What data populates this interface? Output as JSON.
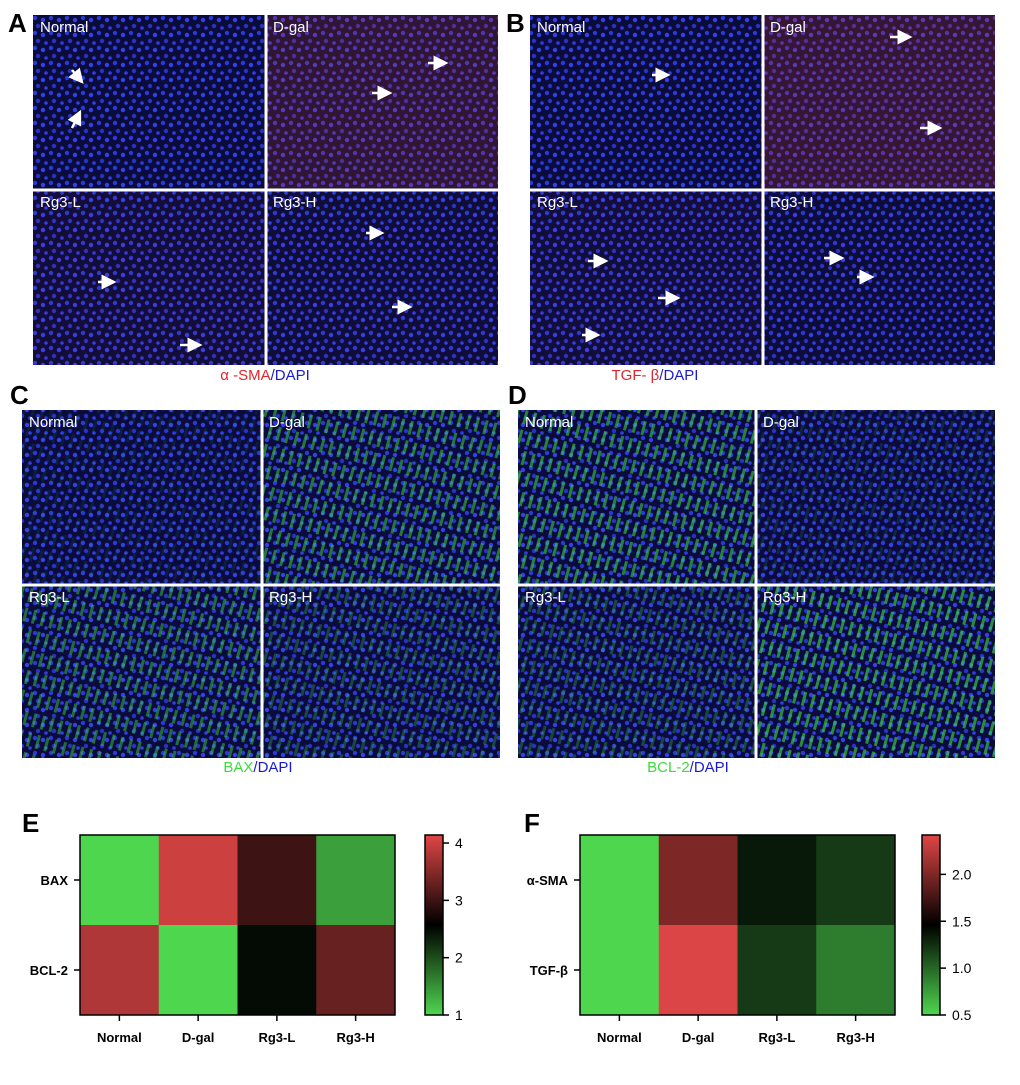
{
  "panels": [
    {
      "letter": "A",
      "labels": [
        "Normal",
        "D-gal",
        "Rg3-L",
        "Rg3-H"
      ],
      "caption": {
        "marker": "α -SMA",
        "slash": "/",
        "dapi": "DAPI"
      },
      "marker_color": "#e3242b",
      "stain": "red"
    },
    {
      "letter": "B",
      "labels": [
        "Normal",
        "D-gal",
        "Rg3-L",
        "Rg3-H"
      ],
      "caption": {
        "marker": "TGF- β",
        "slash": "/",
        "dapi": "DAPI"
      },
      "marker_color": "#e3242b",
      "stain": "red"
    },
    {
      "letter": "C",
      "labels": [
        "Normal",
        "D-gal",
        "Rg3-L",
        "Rg3-H"
      ],
      "caption": {
        "marker": "BAX",
        "slash": "/",
        "dapi": "DAPI"
      },
      "marker_color": "#3ddc3d",
      "stain": "green"
    },
    {
      "letter": "D",
      "labels": [
        "Normal",
        "D-gal",
        "Rg3-L",
        "Rg3-H"
      ],
      "caption": {
        "marker": "BCL-2",
        "slash": "/",
        "dapi": "DAPI"
      },
      "marker_color": "#3ddc3d",
      "stain": "green"
    }
  ],
  "chart_data": [
    {
      "type": "heatmap",
      "letter": "E",
      "categories": [
        "Normal",
        "D-gal",
        "Rg3-L",
        "Rg3-H"
      ],
      "rows": [
        "BAX",
        "BCL-2"
      ],
      "values": [
        [
          1.0,
          4.0,
          3.0,
          1.4
        ],
        [
          3.8,
          1.0,
          2.5,
          3.3
        ]
      ],
      "colormap": [
        "#4fd64f",
        "#000000",
        "#e04646"
      ],
      "clim": [
        1,
        4.14
      ],
      "colorbar_ticks": [
        1,
        2,
        3,
        4
      ]
    },
    {
      "type": "heatmap",
      "letter": "F",
      "categories": [
        "Normal",
        "D-gal",
        "Rg3-L",
        "Rg3-H"
      ],
      "rows": [
        "α-SMA",
        "TGF-β"
      ],
      "values": [
        [
          0.5,
          2.0,
          1.35,
          1.2
        ],
        [
          0.5,
          2.4,
          1.2,
          0.9
        ]
      ],
      "colormap": [
        "#4fd64f",
        "#000000",
        "#e04646"
      ],
      "clim": [
        0.5,
        2.42
      ],
      "colorbar_ticks": [
        0.5,
        {
          "value": 1.0,
          "label": "1.0"
        },
        1.5,
        {
          "value": 2.0,
          "label": "2.0"
        }
      ]
    }
  ]
}
